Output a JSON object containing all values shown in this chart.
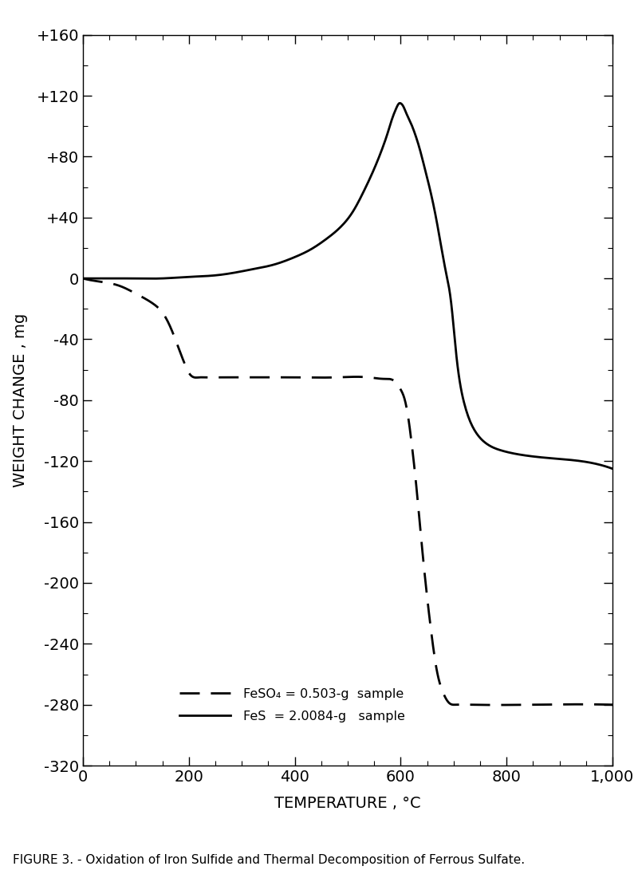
{
  "title": "",
  "xlabel": "TEMPERATURE , °C",
  "ylabel": "WEIGHT CHANGE , mg",
  "figure_caption": "FIGURE 3. - Oxidation of Iron Sulfide and Thermal Decomposition of Ferrous Sulfate.",
  "xlim": [
    0,
    1000
  ],
  "ylim": [
    -320,
    160
  ],
  "xticks": [
    0,
    200,
    400,
    600,
    800,
    1000
  ],
  "xticklabels": [
    "0",
    "200",
    "400",
    "600",
    "800",
    "1,000"
  ],
  "yticks": [
    -320,
    -280,
    -240,
    -200,
    -160,
    -120,
    -80,
    -40,
    0,
    40,
    80,
    120,
    160
  ],
  "yticklabels": [
    "-320",
    "-280",
    "-240",
    "-200",
    "-160",
    "-120",
    "-80",
    "-40",
    "0",
    "+40",
    "+80",
    "+120",
    "+160"
  ],
  "legend_feso4": "FeSO₄ = 0.503-g  sample",
  "legend_fes": "FeS  = 2.0084-g   sample",
  "FeS_x": [
    0,
    30,
    80,
    150,
    200,
    250,
    290,
    320,
    360,
    400,
    430,
    460,
    490,
    510,
    530,
    550,
    565,
    575,
    585,
    592,
    597,
    600,
    605,
    610,
    618,
    627,
    636,
    645,
    655,
    665,
    675,
    685,
    695,
    705,
    720,
    740,
    760,
    790,
    830,
    880,
    940,
    1000
  ],
  "FeS_y": [
    0,
    0,
    0,
    0,
    1,
    2,
    4,
    6,
    9,
    14,
    19,
    26,
    35,
    44,
    57,
    72,
    85,
    95,
    106,
    112,
    115,
    115,
    113,
    109,
    103,
    95,
    85,
    73,
    59,
    43,
    24,
    5,
    -15,
    -50,
    -82,
    -100,
    -108,
    -113,
    -116,
    -118,
    -120,
    -125
  ],
  "FeSO4_x": [
    0,
    30,
    70,
    100,
    130,
    155,
    170,
    182,
    192,
    200,
    210,
    220,
    230,
    260,
    320,
    400,
    480,
    540,
    570,
    590,
    600,
    608,
    615,
    622,
    630,
    638,
    648,
    658,
    668,
    680,
    692,
    704,
    730,
    850,
    1000
  ],
  "FeSO4_y": [
    0,
    -2,
    -5,
    -10,
    -16,
    -25,
    -36,
    -47,
    -56,
    -62,
    -65,
    -65,
    -65,
    -65,
    -65,
    -65,
    -65,
    -65,
    -66,
    -68,
    -73,
    -80,
    -93,
    -112,
    -138,
    -168,
    -203,
    -233,
    -257,
    -272,
    -279,
    -280,
    -280,
    -280,
    -280
  ],
  "background_color": "#ffffff",
  "line_color": "#000000"
}
